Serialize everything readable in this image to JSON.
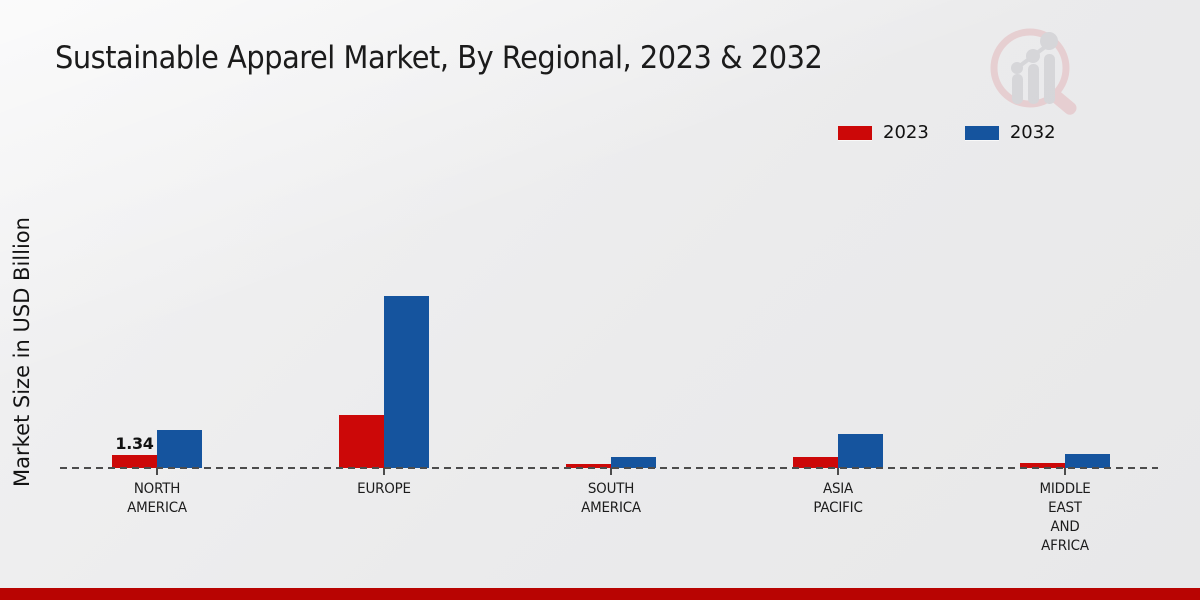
{
  "title": "Sustainable Apparel Market, By Regional, 2023 & 2032",
  "y_axis_label": "Market Size in USD Billion",
  "legend": {
    "position": "top-right",
    "items": [
      {
        "label": "2023",
        "color": "#cc0808"
      },
      {
        "label": "2032",
        "color": "#15549e"
      }
    ]
  },
  "colors": {
    "series_2023": "#cc0808",
    "series_2032": "#15549e",
    "footer_band": "#b80402",
    "baseline": "#4c4c4c",
    "background": "#ebebec",
    "text": "#1b1b1b"
  },
  "watermark_icon": "magnifier-bar-chart-logo",
  "chart_data": {
    "type": "bar",
    "title": "Sustainable Apparel Market, By Regional, 2023 & 2032",
    "xlabel": "",
    "ylabel": "Market Size in USD Billion",
    "units": "USD Billion",
    "legend_position": "top-right",
    "grid": false,
    "baseline_style": "dashed",
    "categories": [
      "NORTH AMERICA",
      "EUROPE",
      "SOUTH AMERICA",
      "ASIA PACIFIC",
      "MIDDLE EAST AND AFRICA"
    ],
    "category_label_lines": [
      [
        "NORTH",
        "AMERICA"
      ],
      [
        "EUROPE"
      ],
      [
        "SOUTH",
        "AMERICA"
      ],
      [
        "ASIA",
        "PACIFIC"
      ],
      [
        "MIDDLE",
        "EAST",
        "AND",
        "AFRICA"
      ]
    ],
    "series": [
      {
        "name": "2023",
        "color": "#cc0808",
        "values": [
          1.34,
          5.3,
          0.4,
          1.1,
          0.45
        ]
      },
      {
        "name": "2032",
        "color": "#15549e",
        "values": [
          3.8,
          17.2,
          1.1,
          3.4,
          1.35
        ]
      }
    ],
    "bar_labels": [
      {
        "series_index": 0,
        "category_index": 0,
        "text": "1.34"
      }
    ],
    "ylim": [
      0,
      18
    ],
    "note": "only the North America 2023 bar carries a printed data label; other values estimated from bar heights"
  }
}
